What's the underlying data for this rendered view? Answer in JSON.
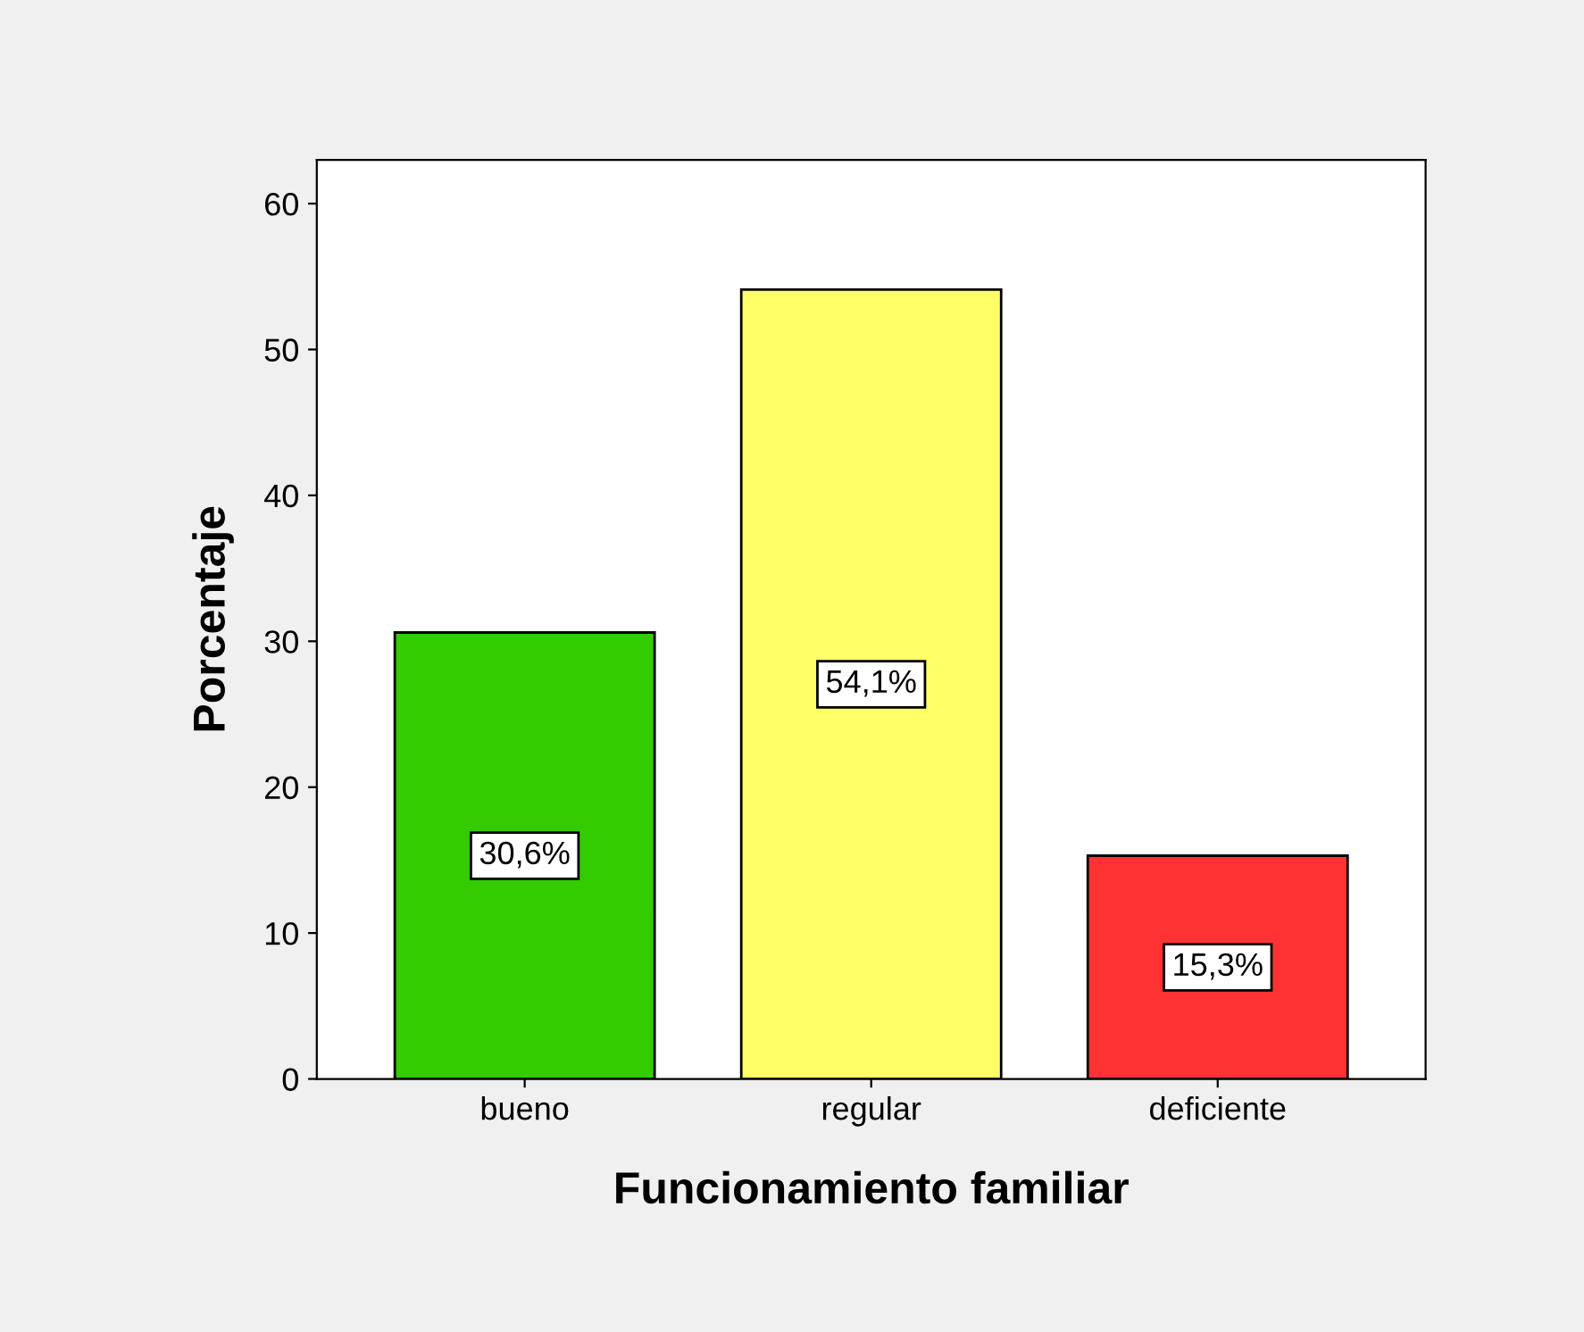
{
  "chart_data": {
    "type": "bar",
    "xlabel": "Funcionamiento familiar",
    "ylabel": "Porcentaje",
    "categories": [
      "bueno",
      "regular",
      "deficiente"
    ],
    "values": [
      30.6,
      54.1,
      15.3
    ],
    "colors": [
      "#33cc00",
      "#ffff66",
      "#ff3333"
    ],
    "value_labels": [
      "30,6%",
      "54,1%",
      "15,3%"
    ],
    "ylim": [
      0,
      63
    ],
    "yticks": [
      0,
      10,
      20,
      30,
      40,
      50,
      60
    ],
    "grid": false
  }
}
